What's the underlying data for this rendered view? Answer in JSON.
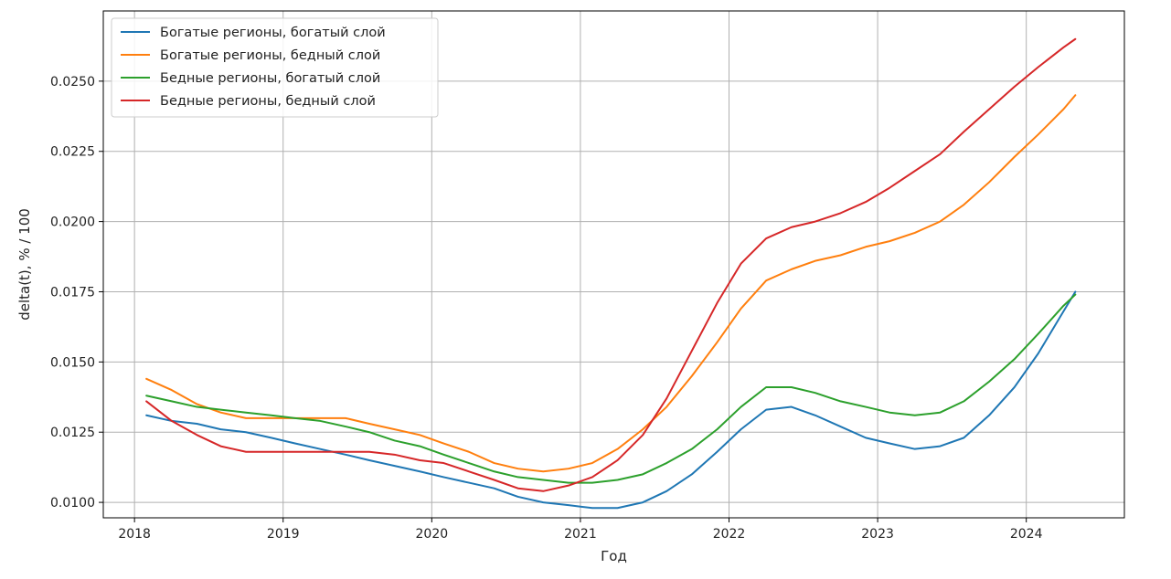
{
  "chart_data": {
    "type": "line",
    "title": "",
    "xlabel": "Год",
    "ylabel": "delta(t), % / 100",
    "xlim": [
      2017.79,
      2024.66
    ],
    "ylim": [
      0.00945,
      0.0275
    ],
    "xticks": [
      2018,
      2019,
      2020,
      2021,
      2022,
      2023,
      2024
    ],
    "xtick_labels": [
      "2018",
      "2019",
      "2020",
      "2021",
      "2022",
      "2023",
      "2024"
    ],
    "yticks": [
      0.01,
      0.0125,
      0.015,
      0.0175,
      0.02,
      0.0225,
      0.025
    ],
    "ytick_labels": [
      "0.0100",
      "0.0125",
      "0.0150",
      "0.0175",
      "0.0200",
      "0.0225",
      "0.0250"
    ],
    "grid": true,
    "legend_position": "top-left",
    "x": [
      2018.08,
      2018.25,
      2018.42,
      2018.58,
      2018.75,
      2018.92,
      2019.08,
      2019.25,
      2019.42,
      2019.58,
      2019.75,
      2019.92,
      2020.08,
      2020.25,
      2020.42,
      2020.58,
      2020.75,
      2020.92,
      2021.08,
      2021.25,
      2021.42,
      2021.58,
      2021.75,
      2021.92,
      2022.08,
      2022.25,
      2022.42,
      2022.58,
      2022.75,
      2022.92,
      2023.08,
      2023.25,
      2023.42,
      2023.58,
      2023.75,
      2023.92,
      2024.08,
      2024.25,
      2024.33
    ],
    "series": [
      {
        "name": "Богатые регионы, богатый слой",
        "color": "#1f77b4",
        "values": [
          0.0131,
          0.0129,
          0.0128,
          0.0126,
          0.0125,
          0.0123,
          0.0121,
          0.0119,
          0.0117,
          0.0115,
          0.0113,
          0.0111,
          0.0109,
          0.0107,
          0.0105,
          0.0102,
          0.01,
          0.0099,
          0.0098,
          0.0098,
          0.01,
          0.0104,
          0.011,
          0.0118,
          0.0126,
          0.0133,
          0.0134,
          0.0131,
          0.0127,
          0.0123,
          0.0121,
          0.0119,
          0.012,
          0.0123,
          0.0131,
          0.0141,
          0.0153,
          0.0168,
          0.0175
        ]
      },
      {
        "name": "Богатые регионы, бедный слой",
        "color": "#ff7f0e",
        "values": [
          0.0144,
          0.014,
          0.0135,
          0.0132,
          0.013,
          0.013,
          0.013,
          0.013,
          0.013,
          0.0128,
          0.0126,
          0.0124,
          0.0121,
          0.0118,
          0.0114,
          0.0112,
          0.0111,
          0.0112,
          0.0114,
          0.0119,
          0.0126,
          0.0134,
          0.0145,
          0.0157,
          0.0169,
          0.0179,
          0.0183,
          0.0186,
          0.0188,
          0.0191,
          0.0193,
          0.0196,
          0.02,
          0.0206,
          0.0214,
          0.0223,
          0.0231,
          0.024,
          0.0245
        ]
      },
      {
        "name": "Бедные регионы, богатый слой",
        "color": "#2ca02c",
        "values": [
          0.0138,
          0.0136,
          0.0134,
          0.0133,
          0.0132,
          0.0131,
          0.013,
          0.0129,
          0.0127,
          0.0125,
          0.0122,
          0.012,
          0.0117,
          0.0114,
          0.0111,
          0.0109,
          0.0108,
          0.0107,
          0.0107,
          0.0108,
          0.011,
          0.0114,
          0.0119,
          0.0126,
          0.0134,
          0.0141,
          0.0141,
          0.0139,
          0.0136,
          0.0134,
          0.0132,
          0.0131,
          0.0132,
          0.0136,
          0.0143,
          0.0151,
          0.016,
          0.017,
          0.0174
        ]
      },
      {
        "name": "Бедные регионы, бедный слой",
        "color": "#d62728",
        "values": [
          0.0136,
          0.0129,
          0.0124,
          0.012,
          0.0118,
          0.0118,
          0.0118,
          0.0118,
          0.0118,
          0.0118,
          0.0117,
          0.0115,
          0.0114,
          0.0111,
          0.0108,
          0.0105,
          0.0104,
          0.0106,
          0.0109,
          0.0115,
          0.0124,
          0.0137,
          0.0154,
          0.0171,
          0.0185,
          0.0194,
          0.0198,
          0.02,
          0.0203,
          0.0207,
          0.0212,
          0.0218,
          0.0224,
          0.0232,
          0.024,
          0.0248,
          0.0255,
          0.0262,
          0.0265
        ]
      }
    ]
  }
}
